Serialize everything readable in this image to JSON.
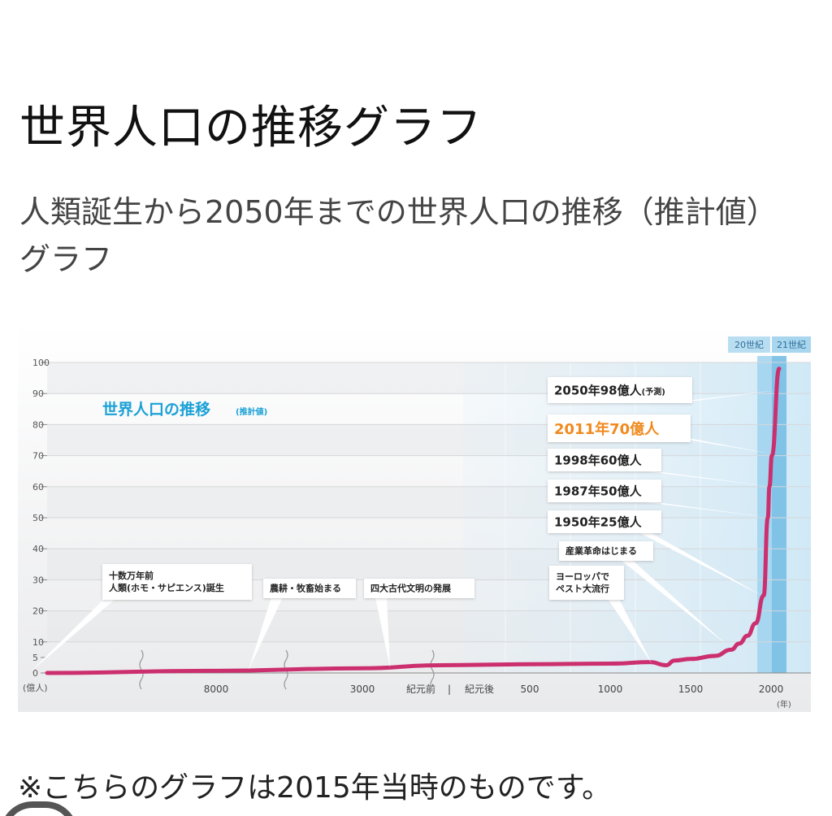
{
  "page": {
    "title": "世界人口の推移グラフ",
    "subtitle": "人類誕生から2050年までの世界人口の推移（推計値）グラフ",
    "footnote": "※こちらのグラフは2015年当時のものです。"
  },
  "chart_data": {
    "type": "line",
    "title": "世界人口の推移",
    "title_note": "(推計値)",
    "ylabel": "(億人)",
    "xlabel": "(年)",
    "ylim": [
      0,
      100
    ],
    "y_ticks": [
      0,
      5,
      10,
      20,
      30,
      40,
      50,
      60,
      70,
      80,
      90,
      100
    ],
    "x_ticks": [
      "8000",
      "3000",
      "紀元前",
      "|",
      "紀元後",
      "500",
      "1000",
      "1500",
      "2000"
    ],
    "x_axis_breaks": [
      "8000年より前",
      "8000年と3000年の間",
      "紀元前の前"
    ],
    "century_bands": [
      "20世紀",
      "21世紀"
    ],
    "series": [
      {
        "color": "#cc2f6e",
        "points": [
          {
            "x": "十数万年前",
            "y": 0
          },
          {
            "x": "8000",
            "y": 0.7
          },
          {
            "x": "3000",
            "y": 1.5
          },
          {
            "x": "1",
            "y": 2.5
          },
          {
            "x": "500",
            "y": 2.8
          },
          {
            "x": "1000",
            "y": 3.0
          },
          {
            "x": "1250",
            "y": 3.5
          },
          {
            "x": "1350",
            "y": 2.5
          },
          {
            "x": "1400",
            "y": 4.0
          },
          {
            "x": "1500",
            "y": 4.5
          },
          {
            "x": "1650",
            "y": 5.5
          },
          {
            "x": "1750",
            "y": 7.5
          },
          {
            "x": "1800",
            "y": 9.5
          },
          {
            "x": "1850",
            "y": 12
          },
          {
            "x": "1900",
            "y": 16
          },
          {
            "x": "1950",
            "y": 25
          },
          {
            "x": "1987",
            "y": 50
          },
          {
            "x": "1998",
            "y": 60
          },
          {
            "x": "2011",
            "y": 70
          },
          {
            "x": "2050",
            "y": 98
          }
        ]
      }
    ],
    "annotations": [
      {
        "text": "十数万年前\n人類(ホモ・サピエンス)誕生",
        "point": 0
      },
      {
        "text": "農耕・牧畜始まる",
        "point": 1
      },
      {
        "text": "四大古代文明の発展",
        "point": 2
      },
      {
        "text": "ヨーロッパで\nペスト大流行",
        "point": 7
      },
      {
        "text": "産業革命はじまる",
        "point": 11
      },
      {
        "text": "1950年25億人",
        "point": 15
      },
      {
        "text": "1987年50億人",
        "point": 16
      },
      {
        "text": "1998年60億人",
        "point": 17
      },
      {
        "text": "2011年70億人",
        "point": 18,
        "highlight": true,
        "color": "#f08a1e"
      },
      {
        "text": "2050年98億人",
        "note": "(予測)",
        "point": 19
      }
    ]
  }
}
